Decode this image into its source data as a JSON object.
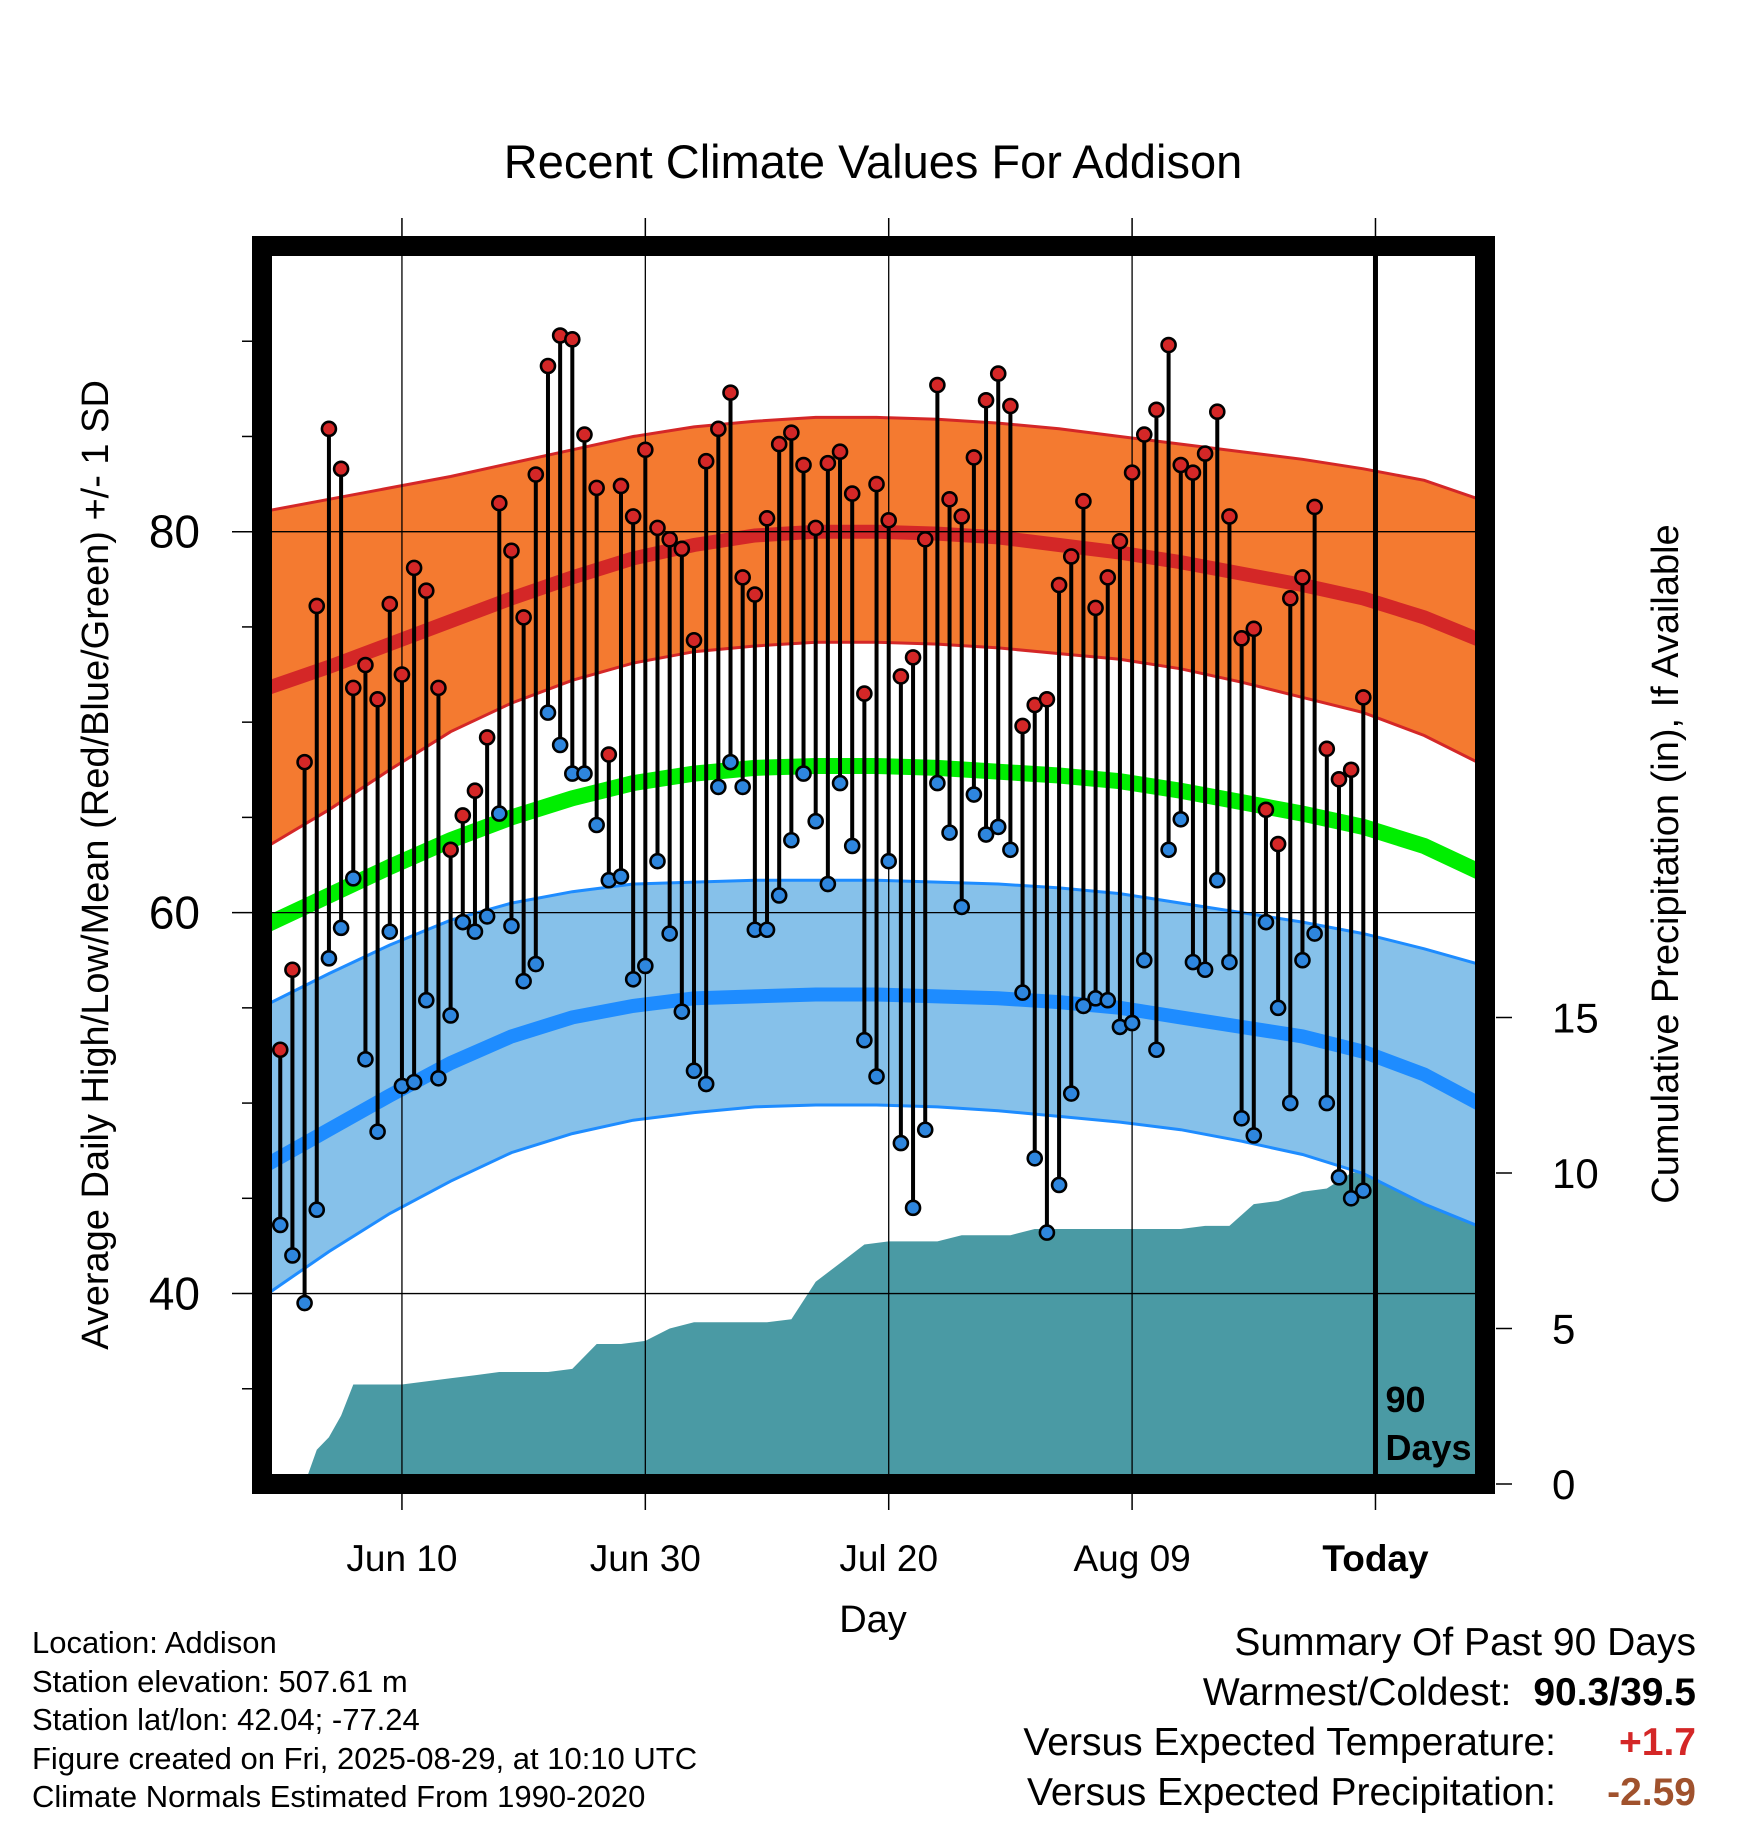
{
  "chart_data": {
    "type": "line",
    "title": "Recent Climate Values For Addison",
    "xlabel": "Day",
    "ylabel": "Average Daily High/Low/Mean (Red/Blue/Green) +/- 1 SD",
    "y2label": "Cumulative Precipitation (in), If Available",
    "xlim_days_from_jun10": [
      -11.5,
      89
    ],
    "ylim": [
      30,
      95
    ],
    "y2lim": [
      0,
      20
    ],
    "y_ticks": [
      "40",
      "60",
      "80"
    ],
    "y2_ticks": [
      "0",
      "5",
      "10",
      "15"
    ],
    "x_ticks": [
      {
        "label": "Jun 10",
        "day": 0
      },
      {
        "label": "Jun 30",
        "day": 20
      },
      {
        "label": "Jul 20",
        "day": 40
      },
      {
        "label": "Aug 09",
        "day": 60
      },
      {
        "label": "Today",
        "day": 80
      }
    ],
    "today_label": "90\nDays",
    "today_label_lines": [
      "90",
      "Days"
    ],
    "grid": true,
    "colors": {
      "high_band": "#f47a30",
      "high_line": "#d42727",
      "mean_line": "#00ee00",
      "low_band": "#86c1ea",
      "low_line": "#1e8cff",
      "precip": "#4a9aa4",
      "high_point": "#d42727",
      "low_point": "#2e86de"
    },
    "normals": {
      "days": [
        -11,
        -6,
        -1,
        4,
        9,
        14,
        19,
        24,
        29,
        34,
        39,
        44,
        49,
        54,
        59,
        64,
        69,
        74,
        79,
        84,
        89
      ],
      "high_mean": [
        71.8,
        72.9,
        74.1,
        75.3,
        76.5,
        77.6,
        78.6,
        79.3,
        79.8,
        80.0,
        80.0,
        79.9,
        79.7,
        79.3,
        78.9,
        78.4,
        77.8,
        77.2,
        76.5,
        75.5,
        74.2
      ],
      "high_upper": [
        81.1,
        81.7,
        82.3,
        82.9,
        83.6,
        84.3,
        85.0,
        85.5,
        85.8,
        86.0,
        86.0,
        85.9,
        85.7,
        85.4,
        85.0,
        84.6,
        84.2,
        83.8,
        83.3,
        82.7,
        81.6
      ],
      "high_lower": [
        63.5,
        65.4,
        67.5,
        69.5,
        71.0,
        72.2,
        73.1,
        73.7,
        74.0,
        74.2,
        74.2,
        74.1,
        73.9,
        73.6,
        73.3,
        72.8,
        72.1,
        71.3,
        70.5,
        69.3,
        67.7
      ],
      "mean": [
        59.4,
        60.9,
        62.4,
        63.8,
        65.0,
        66.0,
        66.8,
        67.3,
        67.6,
        67.7,
        67.7,
        67.6,
        67.4,
        67.2,
        66.9,
        66.4,
        65.8,
        65.2,
        64.5,
        63.5,
        62.0
      ],
      "low_mean": [
        46.8,
        48.6,
        50.4,
        52.1,
        53.5,
        54.5,
        55.1,
        55.5,
        55.6,
        55.7,
        55.7,
        55.6,
        55.5,
        55.3,
        55.0,
        54.5,
        54.0,
        53.5,
        52.7,
        51.5,
        49.8
      ],
      "low_upper": [
        55.2,
        56.8,
        58.3,
        59.6,
        60.5,
        61.1,
        61.5,
        61.6,
        61.7,
        61.7,
        61.7,
        61.6,
        61.5,
        61.3,
        61.0,
        60.5,
        60.0,
        59.5,
        58.9,
        58.1,
        57.2
      ],
      "low_lower": [
        40.0,
        42.2,
        44.2,
        45.9,
        47.4,
        48.4,
        49.1,
        49.5,
        49.8,
        49.9,
        49.9,
        49.8,
        49.6,
        49.3,
        49.0,
        48.6,
        48.0,
        47.3,
        46.3,
        44.7,
        43.4
      ]
    },
    "series": [
      {
        "name": "High",
        "values": [
          52.8,
          57.0,
          67.9,
          76.1,
          85.4,
          83.3,
          71.8,
          73.0,
          71.2,
          76.2,
          72.5,
          78.1,
          76.9,
          71.8,
          63.3,
          65.1,
          66.4,
          69.2,
          81.5,
          79.0,
          75.5,
          83.0,
          88.7,
          90.3,
          90.1,
          85.1,
          82.3,
          68.3,
          82.4,
          80.8,
          84.3,
          80.2,
          79.6,
          79.1,
          74.3,
          83.7,
          85.4,
          87.3,
          77.6,
          76.7,
          80.7,
          84.6,
          85.2,
          83.5,
          80.2,
          83.6,
          84.2,
          82.0,
          71.5,
          82.5,
          80.6,
          72.4,
          73.4,
          79.6,
          87.7,
          81.7,
          80.8,
          83.9,
          86.9,
          88.3,
          86.6,
          69.8,
          70.9,
          71.2,
          77.2,
          78.7,
          81.6,
          76.0,
          77.6,
          79.5,
          83.1,
          85.1,
          86.4,
          89.8,
          83.5,
          83.1,
          84.1,
          86.3,
          80.8,
          74.4,
          74.9,
          65.4,
          63.6,
          76.5,
          77.6,
          81.3,
          68.6,
          67.0,
          67.5,
          71.3
        ]
      },
      {
        "name": "Low",
        "values": [
          43.6,
          42.0,
          39.5,
          44.4,
          57.6,
          59.2,
          61.8,
          52.3,
          48.5,
          59.0,
          50.9,
          51.1,
          55.4,
          51.3,
          54.6,
          59.5,
          59.0,
          59.8,
          65.2,
          59.3,
          56.4,
          57.3,
          70.5,
          68.8,
          67.3,
          67.3,
          64.6,
          61.7,
          61.9,
          56.5,
          57.2,
          62.7,
          58.9,
          54.8,
          51.7,
          51.0,
          66.6,
          67.9,
          66.6,
          59.1,
          59.1,
          60.9,
          63.8,
          67.3,
          64.8,
          61.5,
          66.8,
          63.5,
          53.3,
          51.4,
          62.7,
          47.9,
          44.5,
          48.6,
          66.8,
          64.2,
          60.3,
          66.2,
          64.1,
          64.5,
          63.3,
          55.8,
          47.1,
          43.2,
          45.7,
          50.5,
          55.1,
          55.5,
          55.4,
          54.0,
          54.2,
          57.5,
          52.8,
          63.3,
          64.9,
          57.4,
          57.0,
          61.7,
          57.4,
          49.2,
          48.3,
          59.5,
          55.0,
          50.0,
          57.5,
          58.9,
          50.0,
          46.1,
          45.0,
          45.4
        ]
      },
      {
        "name": "Cumulative Precipitation",
        "days": [
          -8,
          -7,
          -6,
          -5,
          -4,
          -3,
          -2,
          0,
          2,
          4,
          6,
          8,
          10,
          12,
          14,
          16,
          17,
          18,
          20,
          22,
          24,
          26,
          30,
          32,
          34,
          36,
          38,
          40,
          42,
          44,
          46,
          48,
          50,
          52,
          54,
          56,
          58,
          60,
          62,
          64,
          66,
          68,
          70,
          72,
          74,
          76,
          78,
          80,
          89
        ],
        "values": [
          0.0,
          1.1,
          1.5,
          2.2,
          3.2,
          3.2,
          3.2,
          3.2,
          3.3,
          3.4,
          3.5,
          3.6,
          3.6,
          3.6,
          3.7,
          4.5,
          4.5,
          4.5,
          4.6,
          5.0,
          5.2,
          5.2,
          5.2,
          5.3,
          6.5,
          7.1,
          7.7,
          7.8,
          7.8,
          7.8,
          8.0,
          8.0,
          8.0,
          8.2,
          8.2,
          8.2,
          8.2,
          8.2,
          8.2,
          8.2,
          8.3,
          8.3,
          9.0,
          9.1,
          9.4,
          9.5,
          10.0,
          10.1,
          10.1
        ]
      }
    ]
  },
  "footer": {
    "location": "Location: Addison",
    "elevation": "Station elevation: 507.61 m",
    "latlon": "Station lat/lon: 42.04; -77.24",
    "created": "Figure created on Fri, 2025-08-29, at 10:10 UTC",
    "normals": "Climate Normals Estimated From 1990-2020"
  },
  "summary": {
    "title": "Summary Of Past 90 Days",
    "warm_cold_label": "Warmest/Coldest:",
    "warm_cold_value": "90.3/39.5",
    "temp_label": "Versus Expected Temperature:",
    "temp_value": "+1.7",
    "temp_color": "#d42727",
    "precip_label": "Versus Expected Precipitation:",
    "precip_value": "-2.59",
    "precip_color": "#a0522d"
  }
}
